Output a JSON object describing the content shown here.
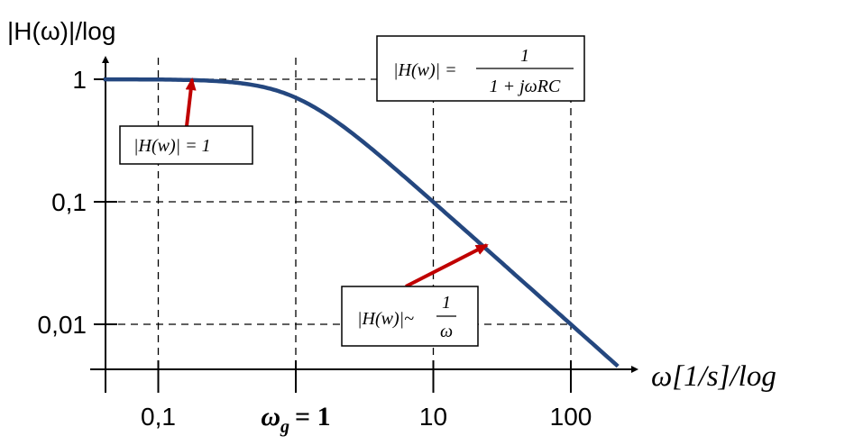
{
  "chart_data": {
    "type": "line",
    "xscale": "log",
    "yscale": "log",
    "xlabel": "ω[1/s]/log",
    "ylabel": "|H(ω)|/log",
    "x_ticks": [
      "0,1",
      "ω_g = 1",
      "10",
      "100"
    ],
    "x_tick_values": [
      0.1,
      1,
      10,
      100
    ],
    "y_ticks": [
      "1",
      "0,1",
      "0,01"
    ],
    "y_tick_values": [
      1,
      0.1,
      0.01
    ],
    "xlim": [
      0.04,
      220
    ],
    "grid": true,
    "series": [
      {
        "formula": "1/sqrt(1+ω²)",
        "x": [
          0.04,
          0.1,
          0.3,
          1,
          3,
          10,
          30,
          100,
          200
        ],
        "values": [
          1,
          0.995,
          0.958,
          0.707,
          0.316,
          0.0995,
          0.0333,
          0.01,
          0.005
        ],
        "color": "#24477f"
      }
    ],
    "annotations": [
      {
        "text_left": "|H(w)| =",
        "numerator": "1",
        "denominator": "1 + jωRC"
      },
      {
        "text": "|H(w)| = 1",
        "arrow_color": "#c00000"
      },
      {
        "text_left": "|H(w)|~",
        "numerator": "1",
        "denominator": "ω",
        "arrow_color": "#c00000"
      }
    ],
    "xtick_main": "ω",
    "xtick_sub": "g",
    "xtick_eq": "= 1"
  }
}
